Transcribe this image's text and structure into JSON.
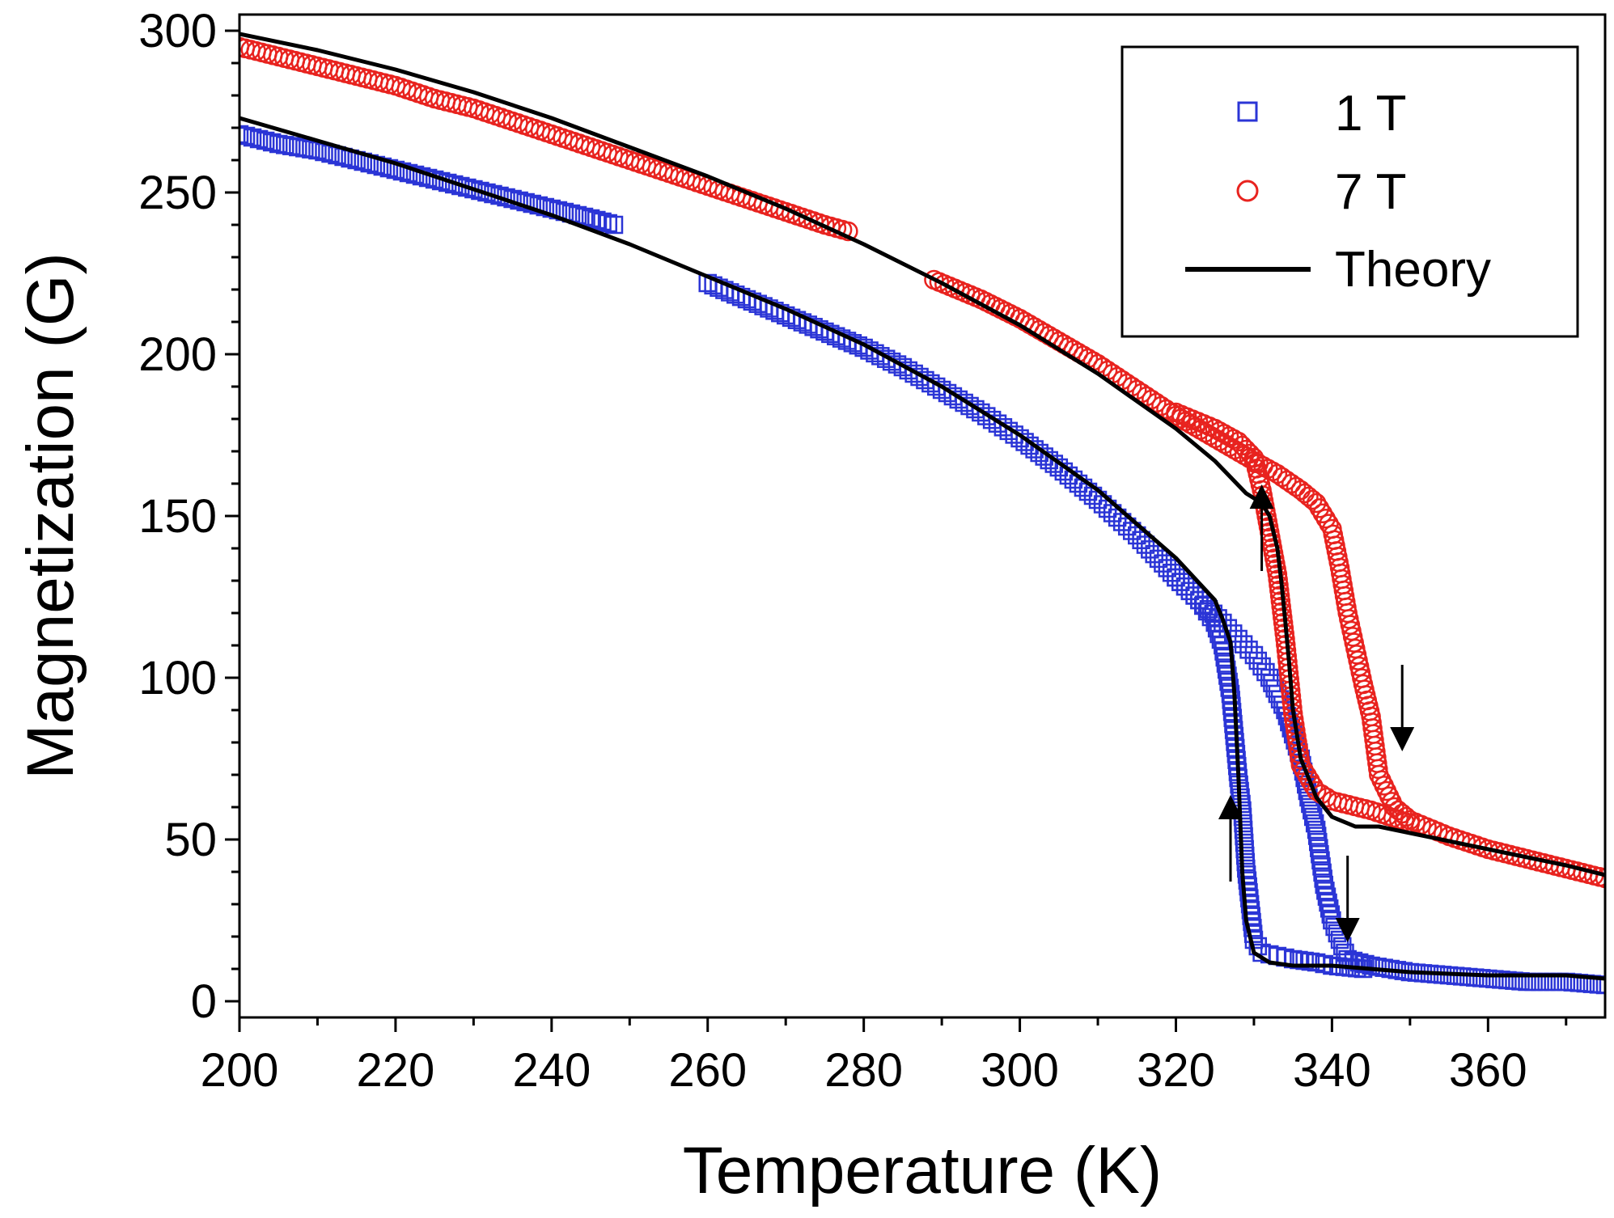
{
  "chart_data": {
    "type": "scatter",
    "title": "",
    "xlabel": "Temperature (K)",
    "ylabel": "Magnetization (G)",
    "xlim": [
      200,
      375
    ],
    "ylim": [
      -5,
      305
    ],
    "xticks": [
      200,
      220,
      240,
      260,
      280,
      300,
      320,
      340,
      360
    ],
    "yticks": [
      0,
      50,
      100,
      150,
      200,
      250,
      300
    ],
    "legend_position": "top-right",
    "series": [
      {
        "name": "1 T",
        "marker": "square",
        "color": "#2b35d6",
        "segments": [
          {
            "x": [
              200,
              205,
              210,
              215,
              220,
              225,
              230,
              235,
              240,
              245,
              248
            ],
            "y": [
              268,
              265,
              263,
              260,
              257,
              254,
              251,
              248,
              245,
              242,
              240
            ]
          },
          {
            "x": [
              260,
              265,
              270,
              275,
              280,
              285,
              290,
              295,
              300,
              305,
              310,
              315,
              320,
              323,
              326,
              328,
              330,
              332,
              334,
              336,
              337,
              338,
              339,
              340,
              342,
              345,
              350,
              355,
              360,
              365,
              370,
              375
            ],
            "y": [
              222,
              217,
              212,
              207,
              202,
              196,
              189,
              182,
              174,
              165,
              155,
              144,
              131,
              124,
              117,
              112,
              107,
              100,
              90,
              75,
              63,
              53,
              36,
              25,
              13,
              11,
              9,
              8,
              7,
              6,
              6,
              5
            ]
          },
          {
            "x": [
              344,
              340,
              338,
              335,
              333,
              331,
              330,
              329.5,
              329,
              328.5,
              328,
              327.5,
              327,
              326,
              325,
              323,
              320
            ],
            "y": [
              10,
              11,
              12,
              13,
              14,
              15,
              19,
              30,
              41,
              59,
              69,
              82,
              95,
              110,
              117,
              124,
              131
            ]
          }
        ]
      },
      {
        "name": "7 T",
        "marker": "circle",
        "color": "#e8231f",
        "segments": [
          {
            "x": [
              200,
              205,
              210,
              215,
              220,
              225,
              230,
              235,
              240,
              245,
              250,
              255,
              260,
              265,
              270,
              275,
              278
            ],
            "y": [
              295,
              292,
              289,
              286,
              283,
              279,
              276,
              272,
              268,
              264,
              260,
              256,
              252,
              248,
              244,
              240,
              238
            ]
          },
          {
            "x": [
              289,
              295,
              300,
              305,
              310,
              315,
              320,
              325,
              330,
              333,
              336,
              338,
              340,
              341,
              342,
              343,
              344,
              345,
              346,
              348,
              350,
              355,
              360,
              365,
              370,
              375
            ],
            "y": [
              223,
              217,
              211,
              204,
              197,
              189,
              181,
              174,
              167,
              163,
              158,
              154,
              146,
              134,
              120,
              109,
              98,
              88,
              70,
              60,
              56,
              51,
              47,
              44,
              41,
              38
            ]
          },
          {
            "x": [
              350,
              345,
              340,
              338,
              336,
              335,
              334,
              333,
              332,
              331,
              330,
              328,
              325,
              320
            ],
            "y": [
              55,
              59,
              62,
              65,
              73,
              89,
              112,
              132,
              145,
              158,
              168,
              173,
              177,
              182
            ]
          }
        ]
      },
      {
        "name": "Theory",
        "marker": "line",
        "color": "#000000",
        "segments": [
          {
            "x": [
              200,
              210,
              220,
              230,
              240,
              250,
              260,
              270,
              280,
              290,
              300,
              310,
              320,
              325,
              326,
              327,
              327.5,
              328,
              328.5,
              329,
              330,
              332,
              335,
              340,
              345,
              350,
              360,
              370,
              375
            ],
            "y": [
              273,
              266,
              259,
              251,
              243,
              234,
              224,
              214,
              203,
              190,
              175,
              158,
              137,
              124,
              118,
              111,
              95,
              70,
              40,
              25,
              15,
              12,
              11,
              11,
              10,
              9,
              8,
              8,
              7
            ]
          },
          {
            "x": [
              200,
              210,
              220,
              230,
              240,
              250,
              260,
              270,
              280,
              290,
              300,
              310,
              320,
              325,
              329,
              331,
              332,
              333,
              333.5,
              334,
              334.5,
              335,
              336,
              338,
              340,
              343,
              346,
              350,
              360,
              370,
              375
            ],
            "y": [
              299,
              294,
              288,
              281,
              273,
              264,
              255,
              245,
              234,
              222,
              209,
              194,
              177,
              167,
              157,
              154,
              150,
              140,
              130,
              118,
              105,
              90,
              75,
              63,
              57,
              54,
              54,
              52,
              47,
              42,
              39
            ]
          }
        ]
      }
    ],
    "annotations": [
      {
        "type": "arrow",
        "direction": "up",
        "x": 327,
        "y_from": 37,
        "y_to": 60
      },
      {
        "type": "arrow",
        "direction": "down",
        "x": 342,
        "y_from": 45,
        "y_to": 22
      },
      {
        "type": "arrow",
        "direction": "up",
        "x": 331,
        "y_from": 133,
        "y_to": 156
      },
      {
        "type": "arrow",
        "direction": "down",
        "x": 349,
        "y_from": 104,
        "y_to": 81
      }
    ]
  }
}
